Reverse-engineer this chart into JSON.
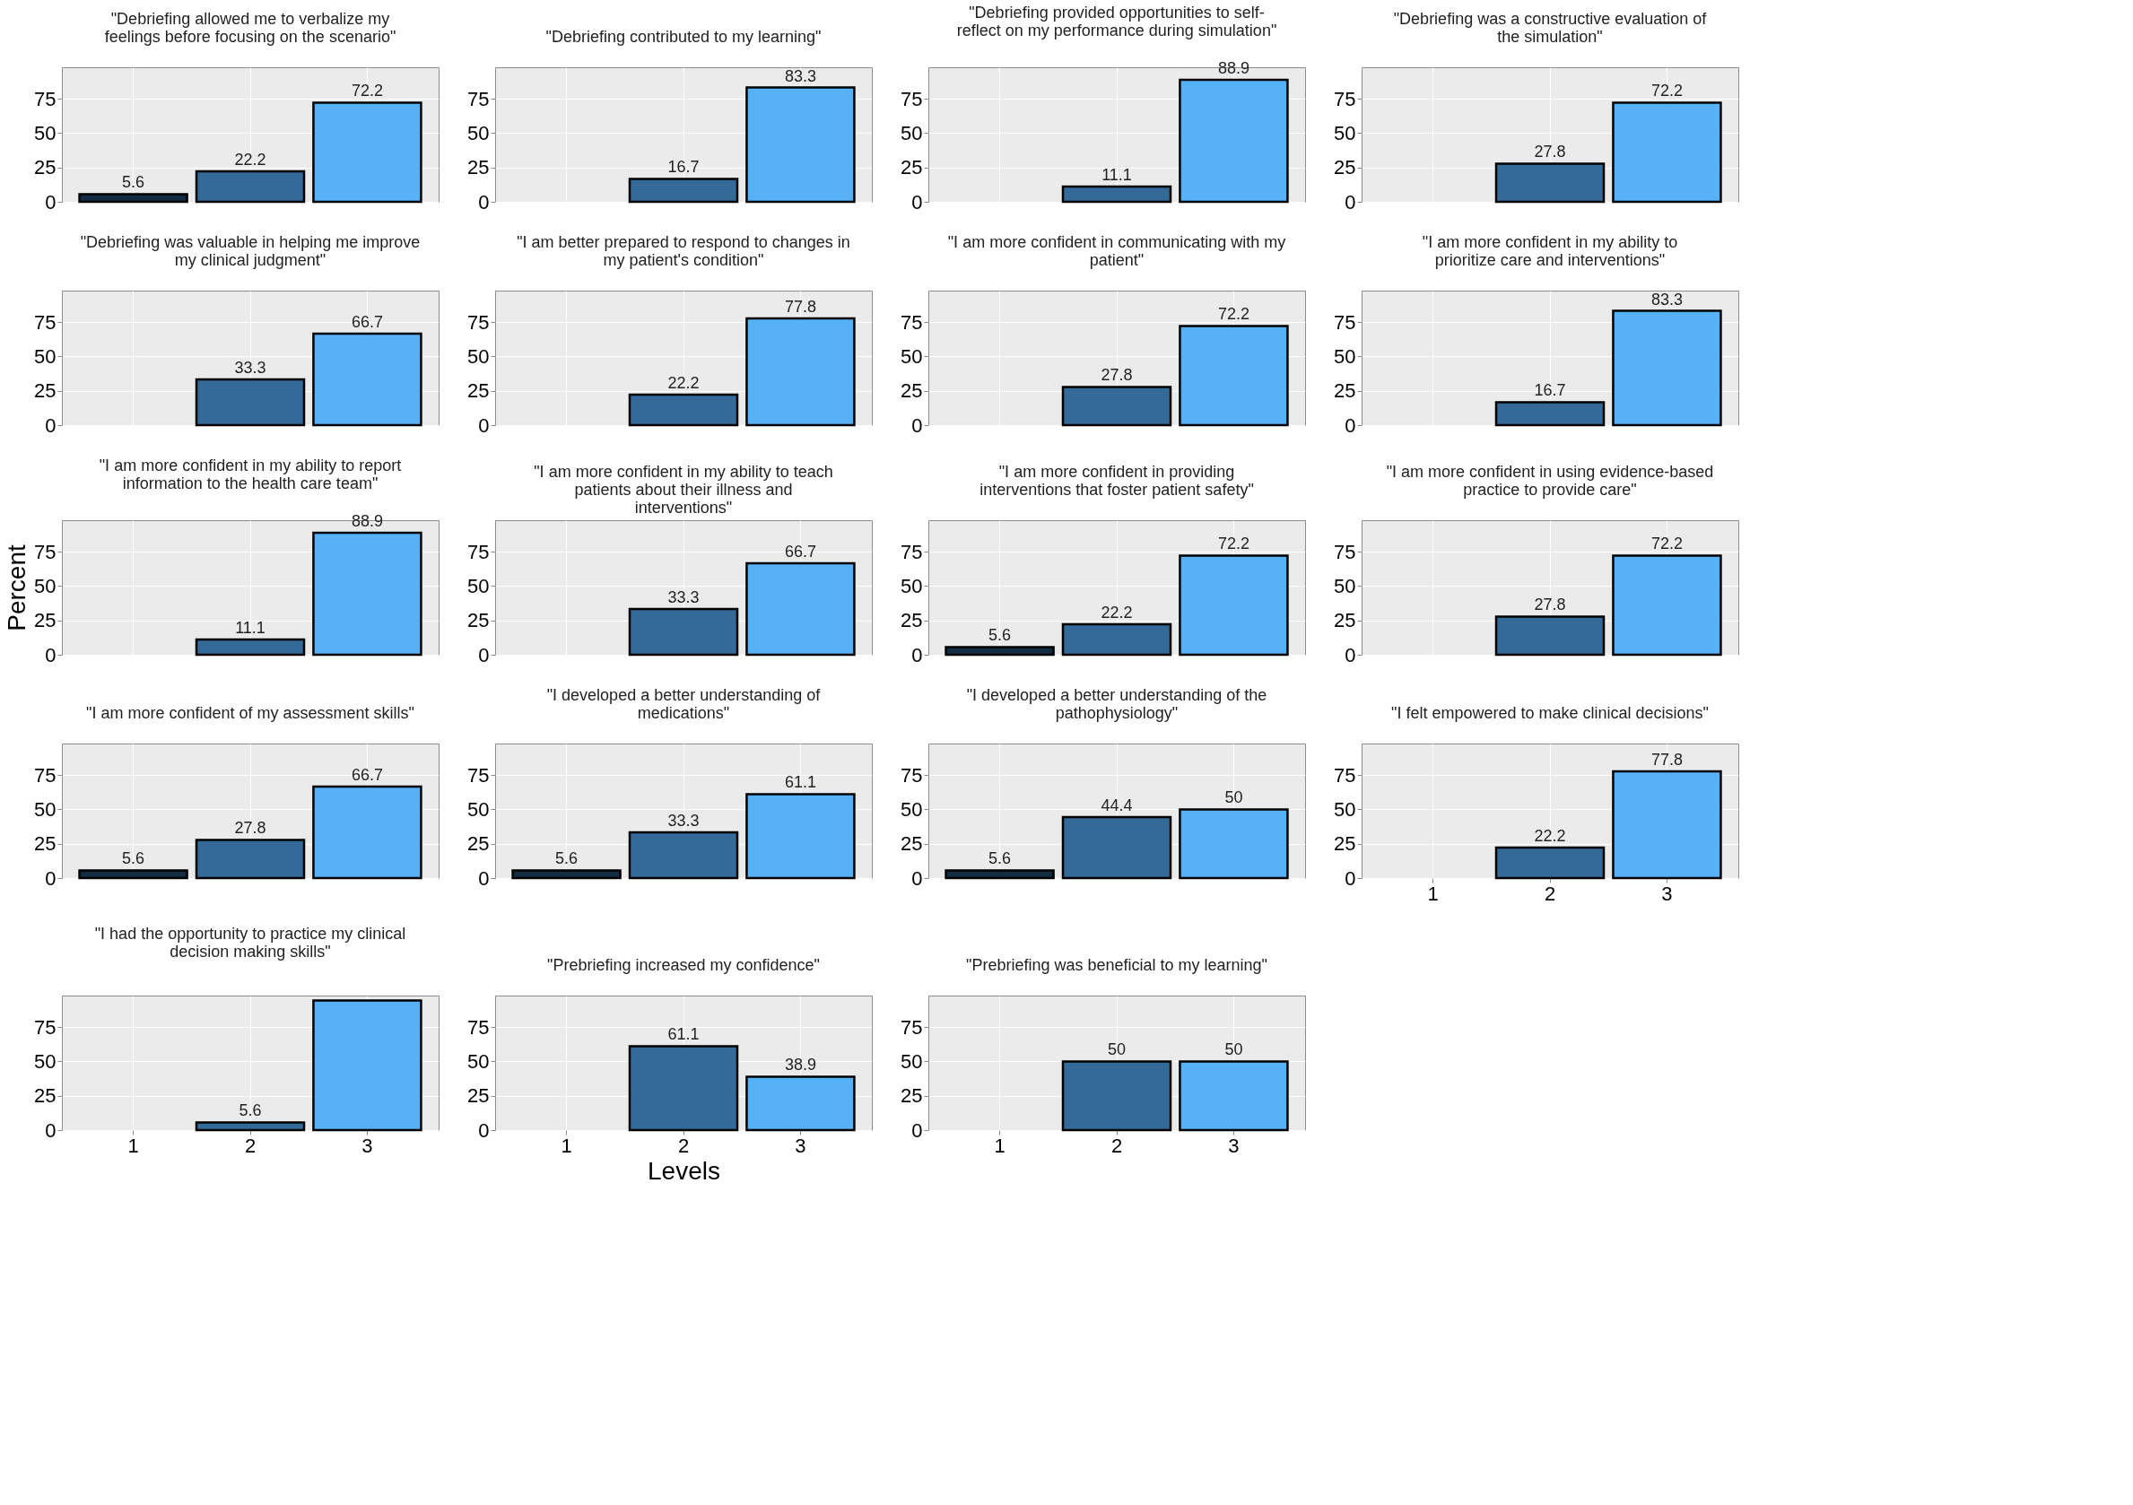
{
  "chart_data": [
    {
      "type": "bar",
      "title": "\"Debriefing allowed me to verbalize my feelings before focusing on the scenario\"",
      "categories": [
        "1",
        "2",
        "3"
      ],
      "values": [
        5.6,
        22.2,
        72.2
      ],
      "colors": [
        "#132b43",
        "#336a98",
        "#56b1f7"
      ],
      "value_labels": [
        "5.6",
        "22.2",
        "72.2"
      ],
      "ylim": [
        0,
        98
      ],
      "yticks": [
        0,
        25,
        50,
        75
      ],
      "grid": true,
      "tick_labels": "y"
    },
    {
      "type": "bar",
      "title": "\"Debriefing contributed to my learning\"",
      "categories": [
        "1",
        "2",
        "3"
      ],
      "values": [
        null,
        16.7,
        83.3
      ],
      "colors": [
        "#132b43",
        "#336a98",
        "#56b1f7"
      ],
      "value_labels": [
        null,
        "16.7",
        "83.3"
      ],
      "ylim": [
        0,
        98
      ],
      "yticks": [
        0,
        25,
        50,
        75
      ],
      "grid": true,
      "tick_labels": "y"
    },
    {
      "type": "bar",
      "title": "\"Debriefing provided opportunities to self-reflect on my performance during simulation\"",
      "categories": [
        "1",
        "2",
        "3"
      ],
      "values": [
        null,
        11.1,
        88.9
      ],
      "colors": [
        "#132b43",
        "#336a98",
        "#56b1f7"
      ],
      "value_labels": [
        null,
        "11.1",
        "88.9"
      ],
      "ylim": [
        0,
        98
      ],
      "yticks": [
        0,
        25,
        50,
        75
      ],
      "grid": true,
      "tick_labels": "y"
    },
    {
      "type": "bar",
      "title": "\"Debriefing was a constructive evaluation of the simulation\"",
      "categories": [
        "1",
        "2",
        "3"
      ],
      "values": [
        null,
        27.8,
        72.2
      ],
      "colors": [
        "#132b43",
        "#336a98",
        "#56b1f7"
      ],
      "value_labels": [
        null,
        "27.8",
        "72.2"
      ],
      "ylim": [
        0,
        98
      ],
      "yticks": [
        0,
        25,
        50,
        75
      ],
      "grid": true,
      "tick_labels": "y"
    },
    {
      "type": "bar",
      "title": "\"Debriefing was valuable in helping me improve my clinical judgment\"",
      "categories": [
        "1",
        "2",
        "3"
      ],
      "values": [
        null,
        33.3,
        66.7
      ],
      "colors": [
        "#132b43",
        "#336a98",
        "#56b1f7"
      ],
      "value_labels": [
        null,
        "33.3",
        "66.7"
      ],
      "ylim": [
        0,
        98
      ],
      "yticks": [
        0,
        25,
        50,
        75
      ],
      "grid": true,
      "tick_labels": "y"
    },
    {
      "type": "bar",
      "title": "\"I am better prepared to respond to changes in my patient's condition\"",
      "categories": [
        "1",
        "2",
        "3"
      ],
      "values": [
        null,
        22.2,
        77.8
      ],
      "colors": [
        "#132b43",
        "#336a98",
        "#56b1f7"
      ],
      "value_labels": [
        null,
        "22.2",
        "77.8"
      ],
      "ylim": [
        0,
        98
      ],
      "yticks": [
        0,
        25,
        50,
        75
      ],
      "grid": true,
      "tick_labels": "y"
    },
    {
      "type": "bar",
      "title": "\"I am more confident in communicating with my patient\"",
      "categories": [
        "1",
        "2",
        "3"
      ],
      "values": [
        null,
        27.8,
        72.2
      ],
      "colors": [
        "#132b43",
        "#336a98",
        "#56b1f7"
      ],
      "value_labels": [
        null,
        "27.8",
        "72.2"
      ],
      "ylim": [
        0,
        98
      ],
      "yticks": [
        0,
        25,
        50,
        75
      ],
      "grid": true,
      "tick_labels": "y"
    },
    {
      "type": "bar",
      "title": "\"I am more confident in my ability to prioritize care and interventions\"",
      "categories": [
        "1",
        "2",
        "3"
      ],
      "values": [
        null,
        16.7,
        83.3
      ],
      "colors": [
        "#132b43",
        "#336a98",
        "#56b1f7"
      ],
      "value_labels": [
        null,
        "16.7",
        "83.3"
      ],
      "ylim": [
        0,
        98
      ],
      "yticks": [
        0,
        25,
        50,
        75
      ],
      "grid": true,
      "tick_labels": "y"
    },
    {
      "type": "bar",
      "title": "\"I am more confident in my ability to report information to the health care team\"",
      "ylabel": "Percent",
      "categories": [
        "1",
        "2",
        "3"
      ],
      "values": [
        null,
        11.1,
        88.9
      ],
      "colors": [
        "#132b43",
        "#336a98",
        "#56b1f7"
      ],
      "value_labels": [
        null,
        "11.1",
        "88.9"
      ],
      "ylim": [
        0,
        98
      ],
      "yticks": [
        0,
        25,
        50,
        75
      ],
      "grid": true,
      "tick_labels": "y"
    },
    {
      "type": "bar",
      "title": "\"I am more confident in my ability to teach patients about their illness and interventions\"",
      "categories": [
        "1",
        "2",
        "3"
      ],
      "values": [
        null,
        33.3,
        66.7
      ],
      "colors": [
        "#132b43",
        "#336a98",
        "#56b1f7"
      ],
      "value_labels": [
        null,
        "33.3",
        "66.7"
      ],
      "ylim": [
        0,
        98
      ],
      "yticks": [
        0,
        25,
        50,
        75
      ],
      "grid": true,
      "tick_labels": "y"
    },
    {
      "type": "bar",
      "title": "\"I am more confident in providing interventions that foster patient safety\"",
      "categories": [
        "1",
        "2",
        "3"
      ],
      "values": [
        5.6,
        22.2,
        72.2
      ],
      "colors": [
        "#132b43",
        "#336a98",
        "#56b1f7"
      ],
      "value_labels": [
        "5.6",
        "22.2",
        "72.2"
      ],
      "ylim": [
        0,
        98
      ],
      "yticks": [
        0,
        25,
        50,
        75
      ],
      "grid": true,
      "tick_labels": "y"
    },
    {
      "type": "bar",
      "title": "\"I am more confident in using evidence-based practice to provide care\"",
      "categories": [
        "1",
        "2",
        "3"
      ],
      "values": [
        null,
        27.8,
        72.2
      ],
      "colors": [
        "#132b43",
        "#336a98",
        "#56b1f7"
      ],
      "value_labels": [
        null,
        "27.8",
        "72.2"
      ],
      "ylim": [
        0,
        98
      ],
      "yticks": [
        0,
        25,
        50,
        75
      ],
      "grid": true,
      "tick_labels": "y"
    },
    {
      "type": "bar",
      "title": "\"I am more confident of my assessment skills\"",
      "categories": [
        "1",
        "2",
        "3"
      ],
      "values": [
        5.6,
        27.8,
        66.7
      ],
      "colors": [
        "#132b43",
        "#336a98",
        "#56b1f7"
      ],
      "value_labels": [
        "5.6",
        "27.8",
        "66.7"
      ],
      "ylim": [
        0,
        98
      ],
      "yticks": [
        0,
        25,
        50,
        75
      ],
      "grid": true,
      "tick_labels": "y"
    },
    {
      "type": "bar",
      "title": "\"I developed a better understanding of medications\"",
      "categories": [
        "1",
        "2",
        "3"
      ],
      "values": [
        5.6,
        33.3,
        61.1
      ],
      "colors": [
        "#132b43",
        "#336a98",
        "#56b1f7"
      ],
      "value_labels": [
        "5.6",
        "33.3",
        "61.1"
      ],
      "ylim": [
        0,
        98
      ],
      "yticks": [
        0,
        25,
        50,
        75
      ],
      "grid": true,
      "tick_labels": "y"
    },
    {
      "type": "bar",
      "title": "\"I developed a better understanding of the pathophysiology\"",
      "categories": [
        "1",
        "2",
        "3"
      ],
      "values": [
        5.6,
        44.4,
        50
      ],
      "colors": [
        "#132b43",
        "#336a98",
        "#56b1f7"
      ],
      "value_labels": [
        "5.6",
        "44.4",
        "50"
      ],
      "ylim": [
        0,
        98
      ],
      "yticks": [
        0,
        25,
        50,
        75
      ],
      "grid": true,
      "tick_labels": "y"
    },
    {
      "type": "bar",
      "title": "\"I felt empowered to make clinical decisions\"",
      "categories": [
        "1",
        "2",
        "3"
      ],
      "values": [
        null,
        22.2,
        77.8
      ],
      "colors": [
        "#132b43",
        "#336a98",
        "#56b1f7"
      ],
      "value_labels": [
        null,
        "22.2",
        "77.8"
      ],
      "ylim": [
        0,
        98
      ],
      "yticks": [
        0,
        25,
        50,
        75
      ],
      "grid": true
    },
    {
      "type": "bar",
      "title": "\"I had the opportunity to practice my clinical decision making skills\"",
      "categories": [
        "1",
        "2",
        "3"
      ],
      "values": [
        null,
        5.6,
        94.4
      ],
      "colors": [
        "#132b43",
        "#336a98",
        "#56b1f7"
      ],
      "value_labels": [
        null,
        "5.6",
        null
      ],
      "ylim": [
        0,
        98
      ],
      "yticks": [
        0,
        25,
        50,
        75
      ],
      "grid": true
    },
    {
      "type": "bar",
      "title": "\"Prebriefing increased my confidence\"",
      "xlabel": "Levels",
      "categories": [
        "1",
        "2",
        "3"
      ],
      "values": [
        null,
        61.1,
        38.9
      ],
      "colors": [
        "#132b43",
        "#336a98",
        "#56b1f7"
      ],
      "value_labels": [
        null,
        "61.1",
        "38.9"
      ],
      "ylim": [
        0,
        98
      ],
      "yticks": [
        0,
        25,
        50,
        75
      ],
      "grid": true
    },
    {
      "type": "bar",
      "title": "\"Prebriefing was beneficial to my learning\"",
      "categories": [
        "1",
        "2",
        "3"
      ],
      "values": [
        null,
        50,
        50
      ],
      "colors": [
        "#132b43",
        "#336a98",
        "#56b1f7"
      ],
      "value_labels": [
        null,
        "50",
        "50"
      ],
      "ylim": [
        0,
        98
      ],
      "yticks": [
        0,
        25,
        50,
        75
      ],
      "grid": true
    }
  ]
}
